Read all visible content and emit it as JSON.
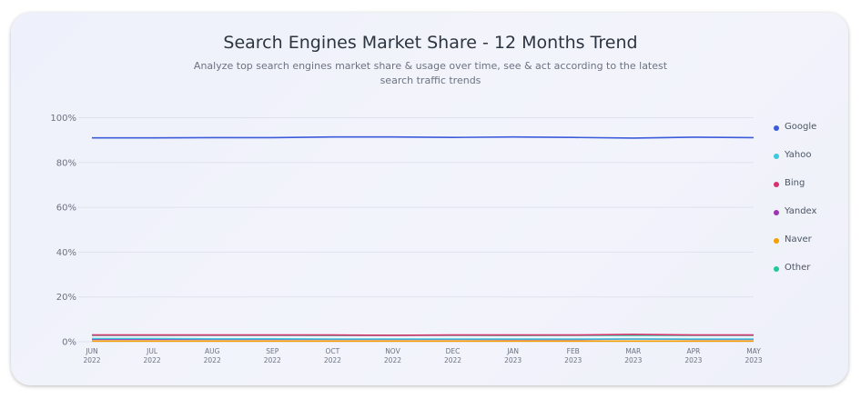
{
  "colors": {
    "Google": "#3b5bdb",
    "Yahoo": "#3bc9db",
    "Bing": "#d6336c",
    "Yandex": "#9c36b5",
    "Naver": "#f59f00",
    "Other": "#20c997"
  },
  "chart_data": {
    "type": "line",
    "title": "Search Engines Market Share - 12 Months Trend",
    "subtitle": "Analyze top search engines market share & usage over time, see & act according to the latest search traffic trends",
    "x": [
      "JUN|2022",
      "JUL|2022",
      "AUG|2022",
      "SEP|2022",
      "OCT|2022",
      "NOV|2022",
      "DEC|2022",
      "JAN|2023",
      "FEB|2023",
      "MAR|2023",
      "APR|2023",
      "MAY|2023"
    ],
    "y_ticks": [
      "0%",
      "20%",
      "40%",
      "60%",
      "80%",
      "100%"
    ],
    "ylim": [
      0,
      100
    ],
    "grid": true,
    "legend": "right",
    "series": [
      {
        "name": "Google",
        "values": [
          91.0,
          91.0,
          91.1,
          91.1,
          91.4,
          91.4,
          91.2,
          91.4,
          91.2,
          90.9,
          91.3,
          91.1
        ]
      },
      {
        "name": "Yahoo",
        "values": [
          1.4,
          1.4,
          1.3,
          1.3,
          1.2,
          1.2,
          1.2,
          1.2,
          1.2,
          1.2,
          1.2,
          1.2
        ]
      },
      {
        "name": "Bing",
        "values": [
          3.0,
          3.0,
          3.0,
          3.0,
          3.0,
          2.9,
          3.0,
          3.0,
          3.0,
          3.3,
          3.0,
          3.0
        ]
      },
      {
        "name": "Yandex",
        "values": [
          1.1,
          1.1,
          1.1,
          1.1,
          1.1,
          1.1,
          1.1,
          1.0,
          1.0,
          1.2,
          1.1,
          1.1
        ]
      },
      {
        "name": "Naver",
        "values": [
          0.3,
          0.3,
          0.3,
          0.3,
          0.3,
          0.3,
          0.3,
          0.3,
          0.3,
          0.3,
          0.3,
          0.3
        ]
      },
      {
        "name": "Other",
        "values": [
          2.9,
          2.9,
          2.9,
          2.9,
          2.8,
          2.9,
          2.9,
          2.8,
          2.9,
          2.9,
          2.9,
          2.9
        ]
      }
    ]
  }
}
